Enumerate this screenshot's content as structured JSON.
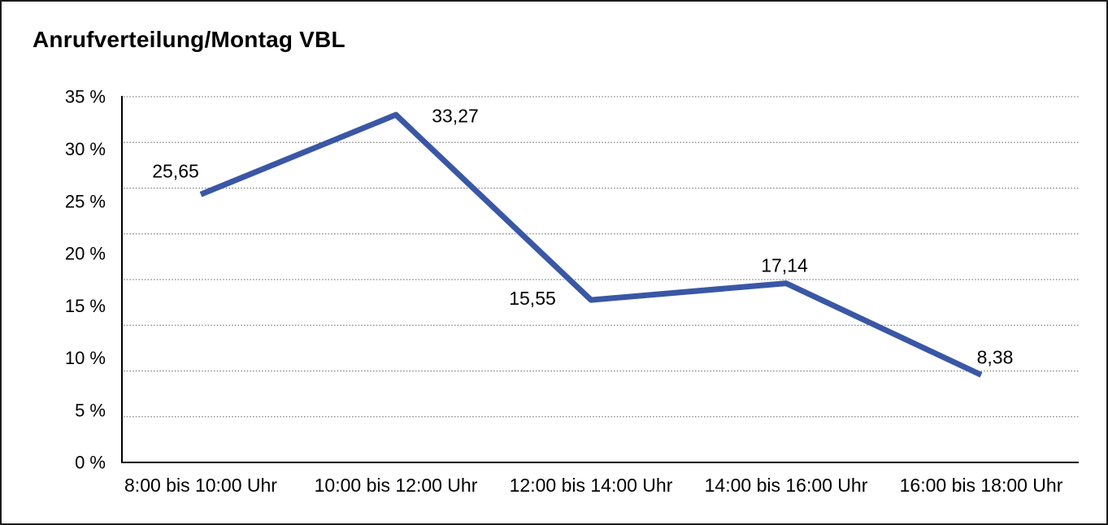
{
  "chart_data": {
    "type": "line",
    "title": "Anrufverteilung/Montag VBL",
    "categories": [
      "8:00 bis 10:00 Uhr",
      "10:00 bis 12:00 Uhr",
      "12:00 bis 14:00 Uhr",
      "14:00 bis 16:00 Uhr",
      "16:00 bis 18:00 Uhr"
    ],
    "values": [
      25.65,
      33.27,
      15.55,
      17.14,
      8.38
    ],
    "point_labels": [
      "25,65",
      "33,27",
      "15,55",
      "17,14",
      "8,38"
    ],
    "unit": "%",
    "xlabel": "",
    "ylabel": "",
    "ylim": [
      0,
      35
    ],
    "y_ticks": {
      "values": [
        35,
        30,
        25,
        20,
        15,
        10,
        5,
        0
      ],
      "labels": [
        "35 %",
        "30 %",
        "25 %",
        "20 %",
        "15 %",
        "10 %",
        "5 %",
        "0 %"
      ]
    },
    "grid": "horizontal-dotted",
    "gridline_count": 8,
    "legend_position": "none",
    "colors": {
      "line": "#3A57A6",
      "text": "#000000",
      "gridline": "#7D7D7D",
      "axis": "#000000",
      "background": "#FFFFFF",
      "frame_border": "#1C1C1C"
    }
  }
}
